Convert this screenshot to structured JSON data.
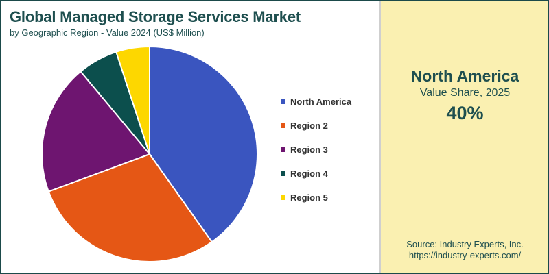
{
  "header": {
    "title": "Global Managed Storage Services Market",
    "subtitle": "by Geographic Region - Value 2024 (US$ Million)"
  },
  "chart_data": {
    "type": "pie",
    "title": "Global Managed Storage Services Market",
    "subtitle": "by Geographic Region - Value 2024 (US$ Million)",
    "categories": [
      "North America",
      "Region 2",
      "Region 3",
      "Region 4",
      "Region 5"
    ],
    "values": [
      40,
      29,
      19.5,
      6,
      5
    ],
    "colors": [
      "#3a55bf",
      "#e55715",
      "#6e1570",
      "#0c4f4d",
      "#fdd700"
    ],
    "legend_position": "right"
  },
  "highlight": {
    "region": "North America",
    "label": "Value Share, 2025",
    "value": "40%"
  },
  "source": {
    "line1": "Source: Industry Experts, Inc.",
    "line2": "https://industry-experts.com/"
  }
}
